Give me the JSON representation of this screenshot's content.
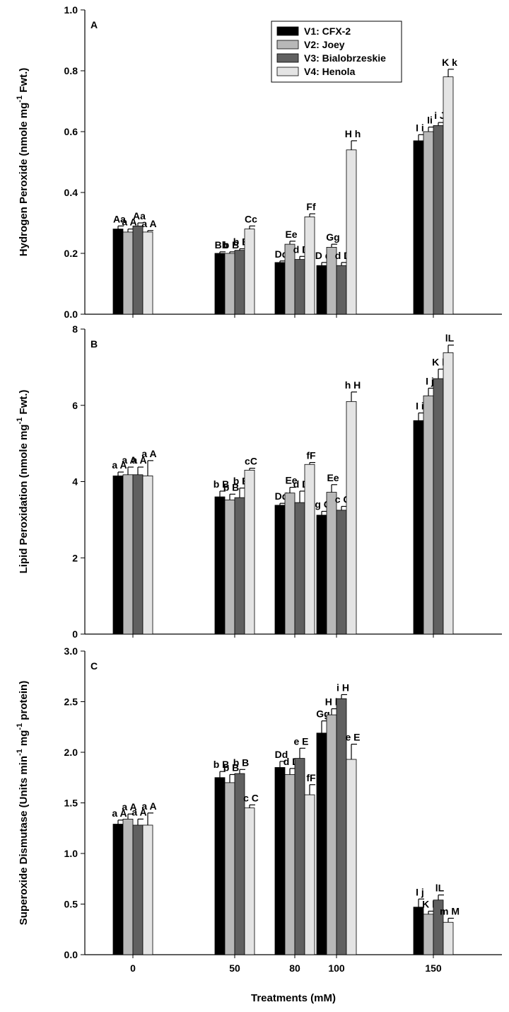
{
  "figure": {
    "xlabel": "Treatments (mM)",
    "xtick_labels": [
      "0",
      "50",
      "80",
      "100",
      "150"
    ]
  },
  "legend": {
    "items": [
      {
        "label": "V1: CFX-2",
        "color": "#000000"
      },
      {
        "label": "V2: Joey",
        "color": "#b8b8b8"
      },
      {
        "label": "V3: Bialobrzeskie",
        "color": "#606060"
      },
      {
        "label": "V4: Henola",
        "color": "#e4e4e4"
      }
    ]
  },
  "chart_data": [
    {
      "type": "bar",
      "panel_label": "A",
      "ylabel": "Hydrogen Peroxide (nmole mg",
      "ylabel_sup": "-1",
      "ylabel_tail": " Fwt.)",
      "ylim": [
        0,
        1.0
      ],
      "yticks": [
        0.0,
        0.2,
        0.4,
        0.6,
        0.8,
        1.0
      ],
      "ytick_labels": [
        "0.0",
        "0.2",
        "0.4",
        "0.6",
        "0.8",
        "1.0"
      ],
      "categories": [
        "0",
        "50",
        "80",
        "100",
        "150"
      ],
      "legend_position": "top-center",
      "series": [
        {
          "name": "V1: CFX-2",
          "values": [
            0.28,
            0.2,
            0.17,
            0.16,
            0.57
          ],
          "errors": [
            0.01,
            0.005,
            0.005,
            0.01,
            0.02
          ],
          "labels": [
            "Aa",
            "Bb",
            "Dd",
            "D d",
            "I i"
          ]
        },
        {
          "name": "V2: Joey",
          "values": [
            0.27,
            0.2,
            0.23,
            0.22,
            0.6
          ],
          "errors": [
            0.01,
            0.005,
            0.01,
            0.01,
            0.015
          ],
          "labels": [
            "a A",
            "b B",
            "Ee",
            "Gg",
            "Ii"
          ]
        },
        {
          "name": "V3: Bialobrzeskie",
          "values": [
            0.29,
            0.21,
            0.18,
            0.16,
            0.62
          ],
          "errors": [
            0.01,
            0.005,
            0.01,
            0.01,
            0.01
          ],
          "labels": [
            "Aa",
            "b B",
            "d D",
            "d D",
            "i J"
          ]
        },
        {
          "name": "V4: Henola",
          "values": [
            0.27,
            0.28,
            0.32,
            0.54,
            0.78
          ],
          "errors": [
            0.005,
            0.01,
            0.01,
            0.03,
            0.025
          ],
          "labels": [
            "a A",
            "Cc",
            "Ff",
            "H h",
            "K k"
          ]
        }
      ]
    },
    {
      "type": "bar",
      "panel_label": "B",
      "ylabel": "Lipid Peroxidation (nmole mg",
      "ylabel_sup": "-1",
      "ylabel_tail": " Fwt.)",
      "ylim": [
        0,
        8
      ],
      "yticks": [
        0,
        2,
        4,
        6,
        8
      ],
      "ytick_labels": [
        "0",
        "2",
        "4",
        "6",
        "8"
      ],
      "categories": [
        "0",
        "50",
        "80",
        "100",
        "150"
      ],
      "series": [
        {
          "name": "V1: CFX-2",
          "values": [
            4.15,
            3.6,
            3.38,
            3.12,
            5.6
          ],
          "errors": [
            0.1,
            0.15,
            0.05,
            0.1,
            0.2
          ],
          "labels": [
            "a A",
            "b B",
            "Dd",
            "g G",
            "I i"
          ]
        },
        {
          "name": "V2: Joey",
          "values": [
            4.18,
            3.52,
            3.7,
            3.72,
            6.25
          ],
          "errors": [
            0.2,
            0.15,
            0.15,
            0.2,
            0.2
          ],
          "labels": [
            "a A",
            "b B",
            "Ee",
            "Ee",
            "I j"
          ]
        },
        {
          "name": "V3: Bialobrzeskie",
          "values": [
            4.18,
            3.58,
            3.45,
            3.25,
            6.7
          ],
          "errors": [
            0.2,
            0.25,
            0.3,
            0.1,
            0.25
          ],
          "labels": [
            "a A",
            "b B",
            "d D",
            "c G",
            "K k"
          ]
        },
        {
          "name": "V4: Henola",
          "values": [
            4.15,
            4.3,
            4.45,
            6.1,
            7.38
          ],
          "errors": [
            0.4,
            0.05,
            0.05,
            0.25,
            0.2
          ],
          "labels": [
            "a A",
            "cC",
            "fF",
            "h H",
            "lL"
          ]
        }
      ]
    },
    {
      "type": "bar",
      "panel_label": "C",
      "ylabel": "Superoxide Dismutase (Units min",
      "ylabel_sup": "-1",
      "ylabel_mid": " mg",
      "ylabel_sup2": "-1",
      "ylabel_tail": " protein)",
      "ylim": [
        0,
        3.0
      ],
      "yticks": [
        0.0,
        0.5,
        1.0,
        1.5,
        2.0,
        2.5,
        3.0
      ],
      "ytick_labels": [
        "0.0",
        "0.5",
        "1.0",
        "1.5",
        "2.0",
        "2.5",
        "3.0"
      ],
      "categories": [
        "0",
        "50",
        "80",
        "100",
        "150"
      ],
      "series": [
        {
          "name": "V1: CFX-2",
          "values": [
            1.29,
            1.75,
            1.85,
            2.19,
            0.47
          ],
          "errors": [
            0.04,
            0.06,
            0.06,
            0.12,
            0.08
          ],
          "labels": [
            "a A",
            "b B",
            "Dd",
            "Gg",
            "I j"
          ]
        },
        {
          "name": "V2: Joey",
          "values": [
            1.34,
            1.7,
            1.78,
            2.37,
            0.4
          ],
          "errors": [
            0.05,
            0.08,
            0.06,
            0.06,
            0.03
          ],
          "labels": [
            "a A",
            "b B",
            "d D",
            "H h",
            "K k"
          ]
        },
        {
          "name": "V3: Bialobrzeskie",
          "values": [
            1.28,
            1.79,
            1.94,
            2.53,
            0.54
          ],
          "errors": [
            0.06,
            0.04,
            0.1,
            0.04,
            0.05
          ],
          "labels": [
            "a A",
            "b B",
            "e E",
            "i H",
            "lL"
          ]
        },
        {
          "name": "V4: Henola",
          "values": [
            1.28,
            1.45,
            1.58,
            1.93,
            0.32
          ],
          "errors": [
            0.12,
            0.03,
            0.1,
            0.15,
            0.04
          ],
          "labels": [
            "a A",
            "c C",
            "fF",
            "e E",
            "m M"
          ]
        }
      ]
    }
  ]
}
